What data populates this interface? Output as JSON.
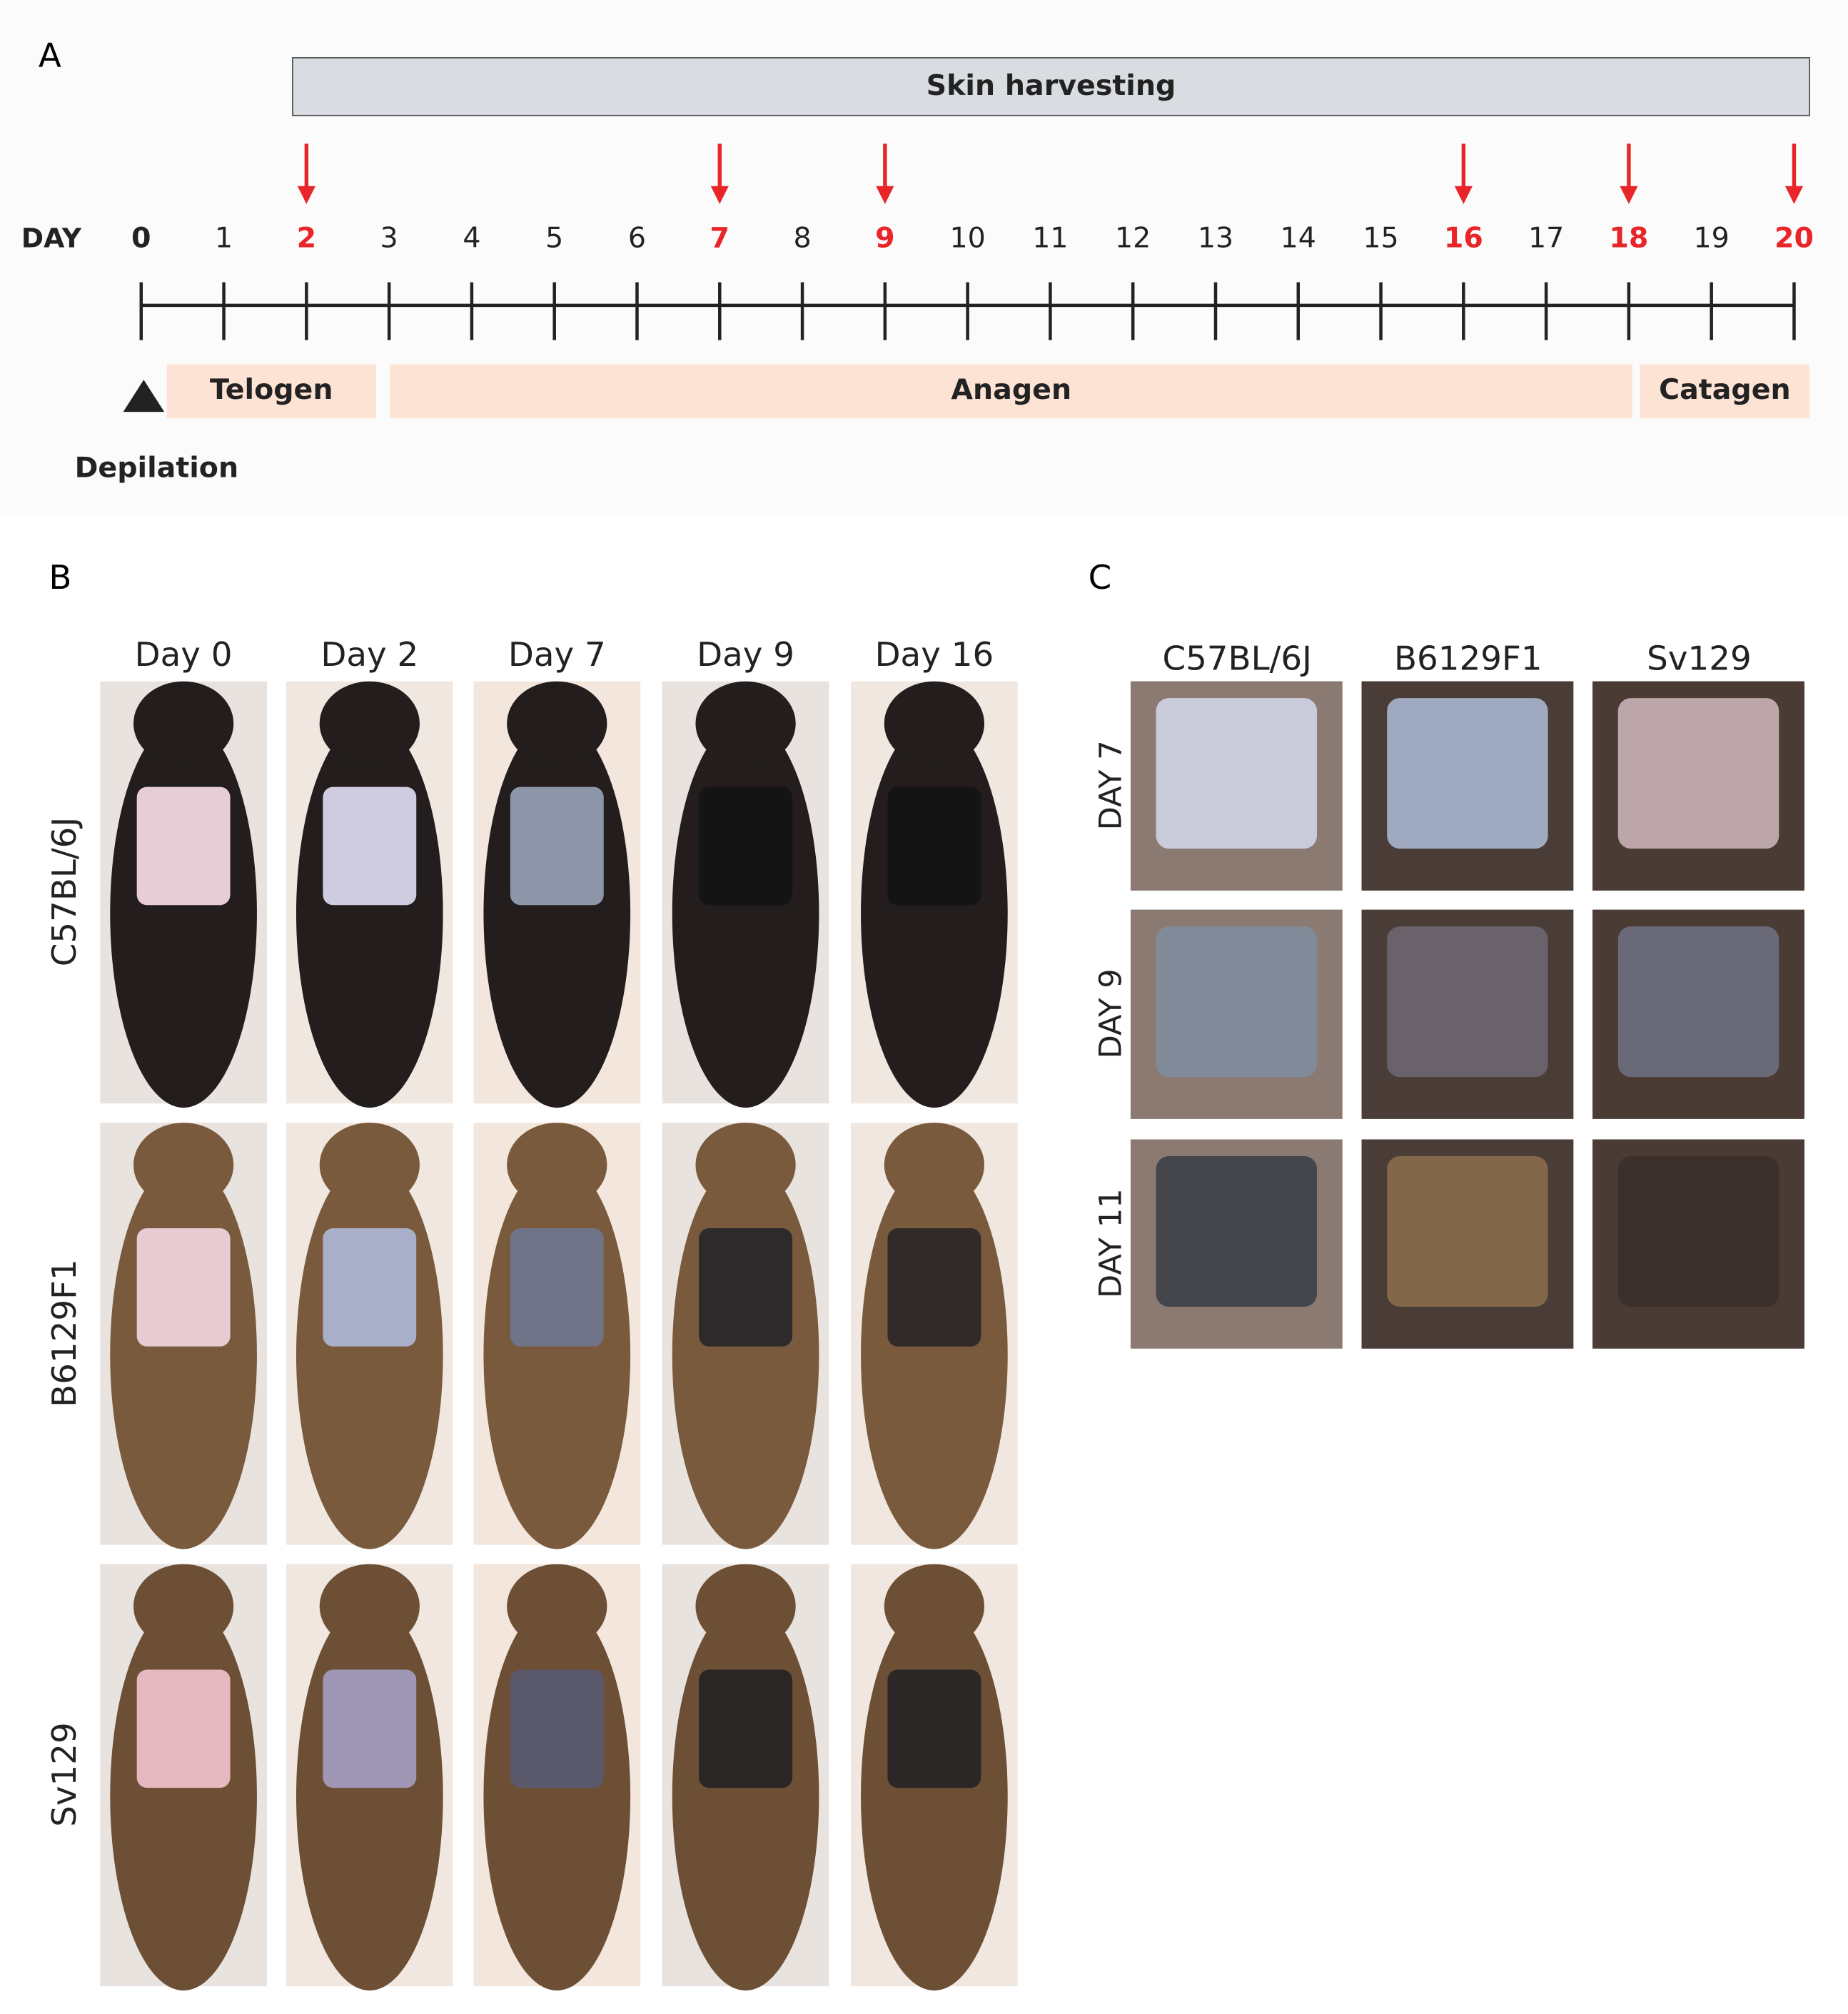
{
  "panel_a": {
    "label": "A",
    "bar_label": "Skin harvesting",
    "axis_label": "DAY",
    "days": [
      0,
      1,
      2,
      3,
      4,
      5,
      6,
      7,
      8,
      9,
      10,
      11,
      12,
      13,
      14,
      15,
      16,
      17,
      18,
      19,
      20
    ],
    "harvest": [
      false,
      false,
      true,
      false,
      false,
      false,
      false,
      true,
      false,
      true,
      false,
      false,
      false,
      false,
      false,
      false,
      true,
      false,
      true,
      false,
      true
    ],
    "harvest_color": "#e8262a",
    "phases": [
      "Telogen",
      "Anagen",
      "Catagen"
    ],
    "event": "Depilation"
  },
  "panel_b": {
    "label": "B",
    "columns": [
      "Day 0",
      "Day 2",
      "Day 7",
      "Day 9",
      "Day 16"
    ],
    "rows": [
      "C57BL/6J",
      "B6129F1",
      "Sv129"
    ]
  },
  "panel_c": {
    "label": "C",
    "columns": [
      "C57BL/6J",
      "B6129F1",
      "Sv129"
    ],
    "rows": [
      "DAY 7",
      "DAY 9",
      "DAY 11"
    ]
  }
}
